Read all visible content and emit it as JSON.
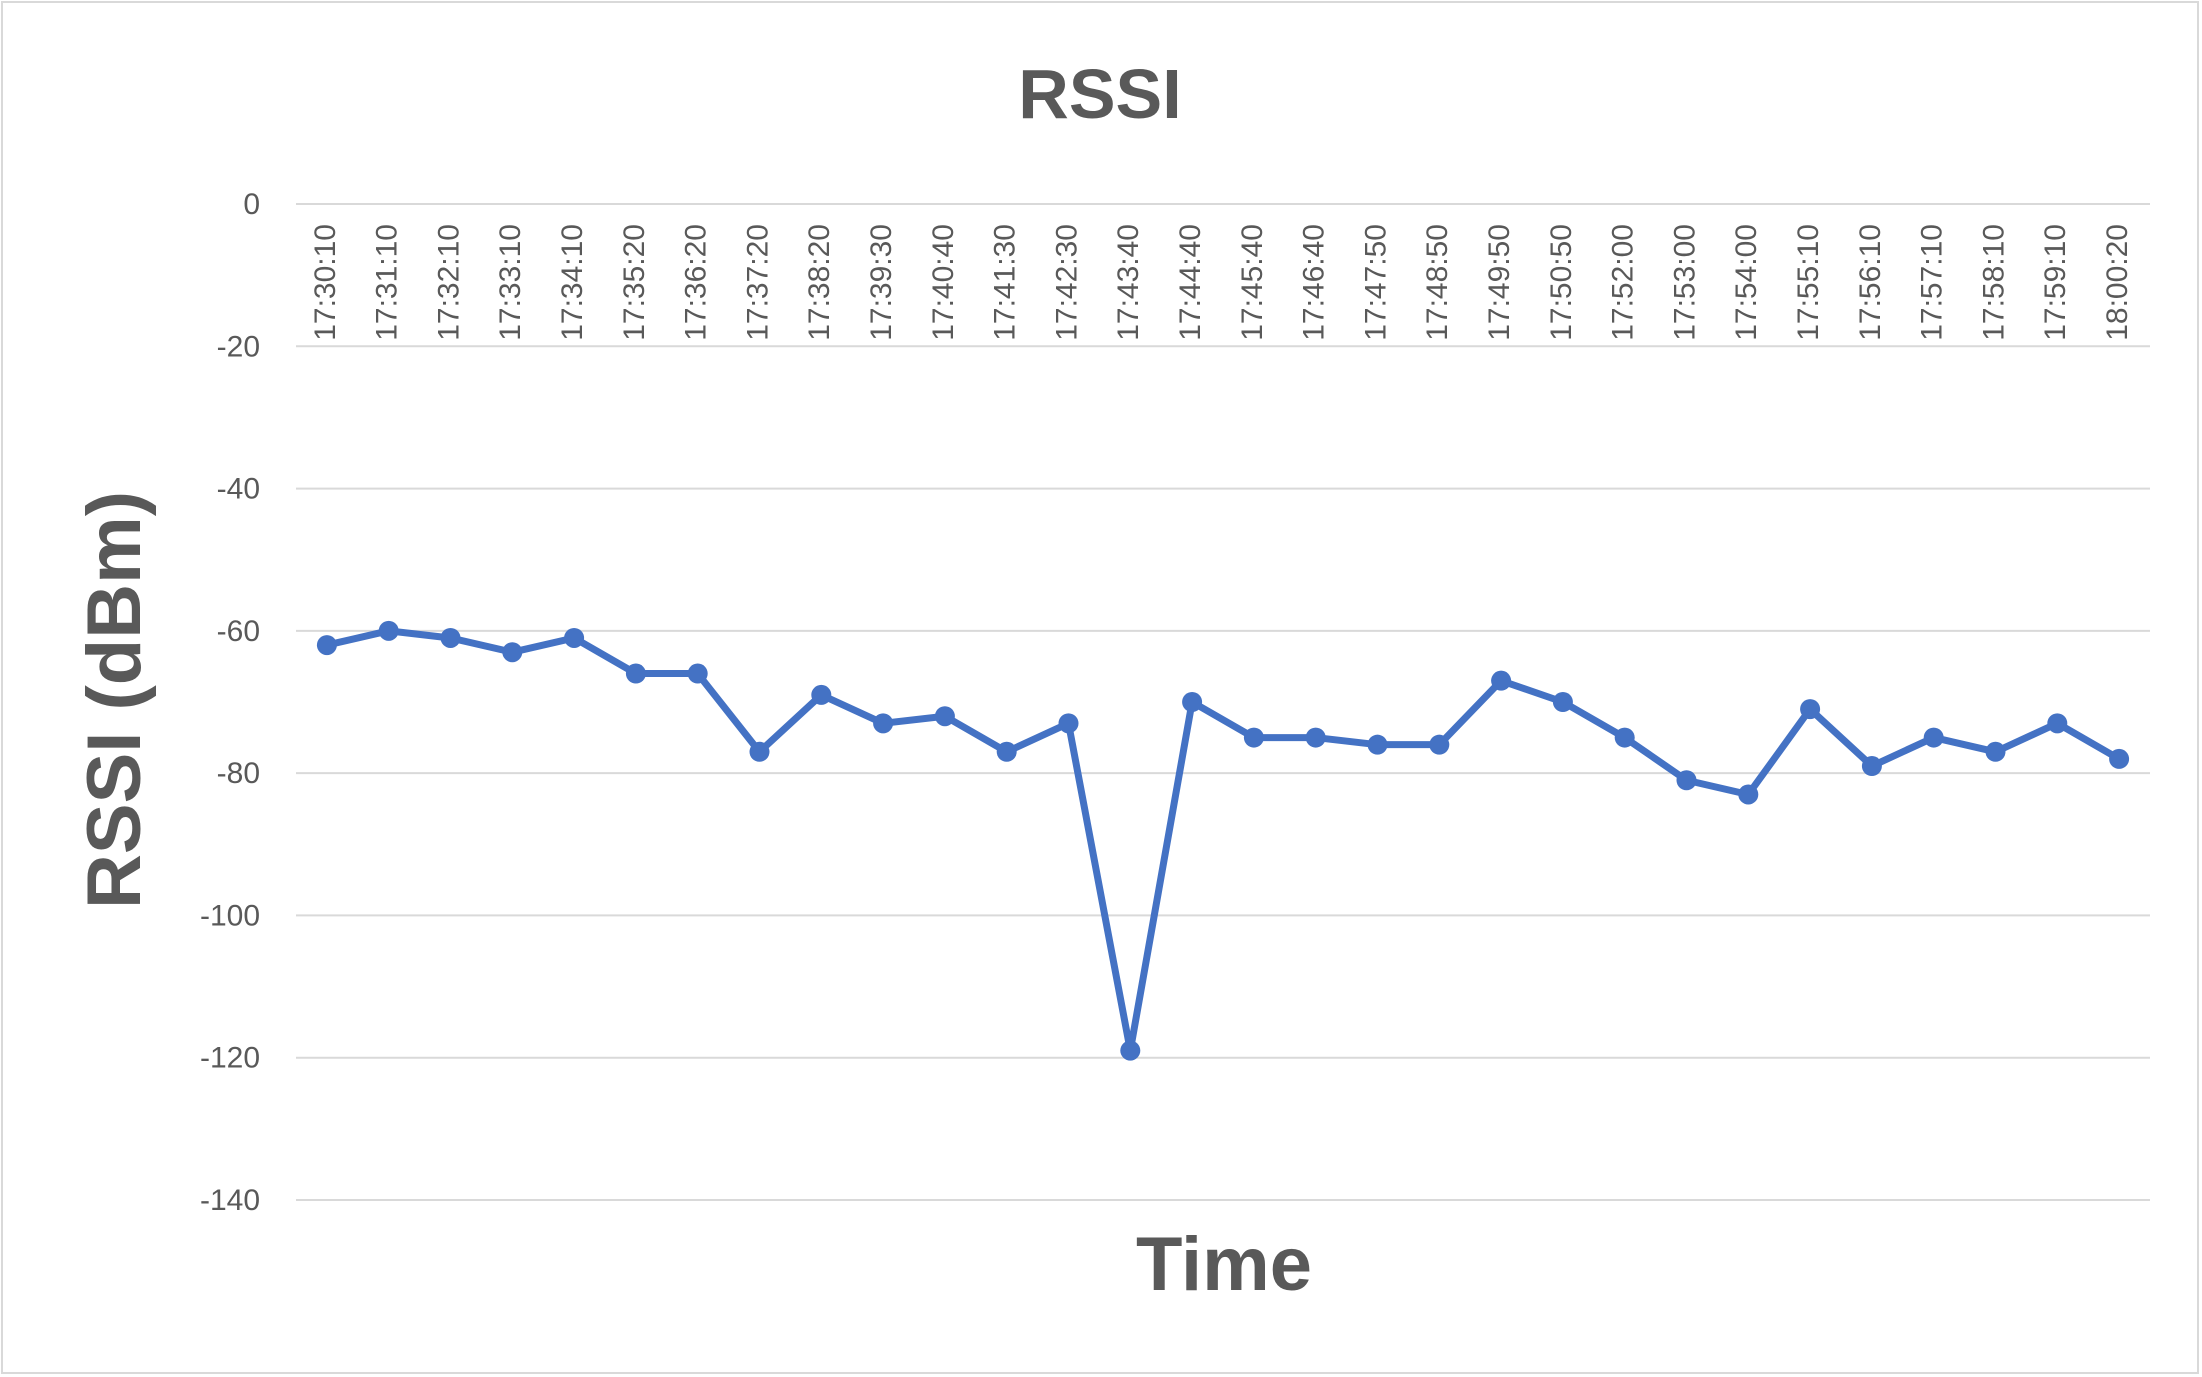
{
  "chart_data": {
    "type": "line",
    "title": "RSSI",
    "xlabel": "Time",
    "ylabel": "RSSI (dBm)",
    "ylim": [
      -140,
      0
    ],
    "y_ticks": [
      0,
      -20,
      -40,
      -60,
      -80,
      -100,
      -120,
      -140
    ],
    "grid": true,
    "x_axis_position": "top",
    "legend": "none",
    "series_color": "#4472c4",
    "categories": [
      "17:30:10",
      "17:31:10",
      "17:32:10",
      "17:33:10",
      "17:34:10",
      "17:35:20",
      "17:36:20",
      "17:37:20",
      "17:38:20",
      "17:39:30",
      "17:40:40",
      "17:41:30",
      "17:42:30",
      "17:43:40",
      "17:44:40",
      "17:45:40",
      "17:46:40",
      "17:47:50",
      "17:48:50",
      "17:49:50",
      "17:50:50",
      "17:52:00",
      "17:53:00",
      "17:54:00",
      "17:55:10",
      "17:56:10",
      "17:57:10",
      "17:58:10",
      "17:59:10",
      "18:00:20"
    ],
    "series": [
      {
        "values": [
          -62,
          -60,
          -61,
          -63,
          -61,
          -66,
          -66,
          -77,
          -69,
          -73,
          -72,
          -77,
          -73,
          -119,
          -70,
          -75,
          -75,
          -76,
          -76,
          -67,
          -70,
          -75,
          -81,
          -83,
          -71,
          -79,
          -75,
          -77,
          -73,
          -78
        ]
      }
    ]
  }
}
